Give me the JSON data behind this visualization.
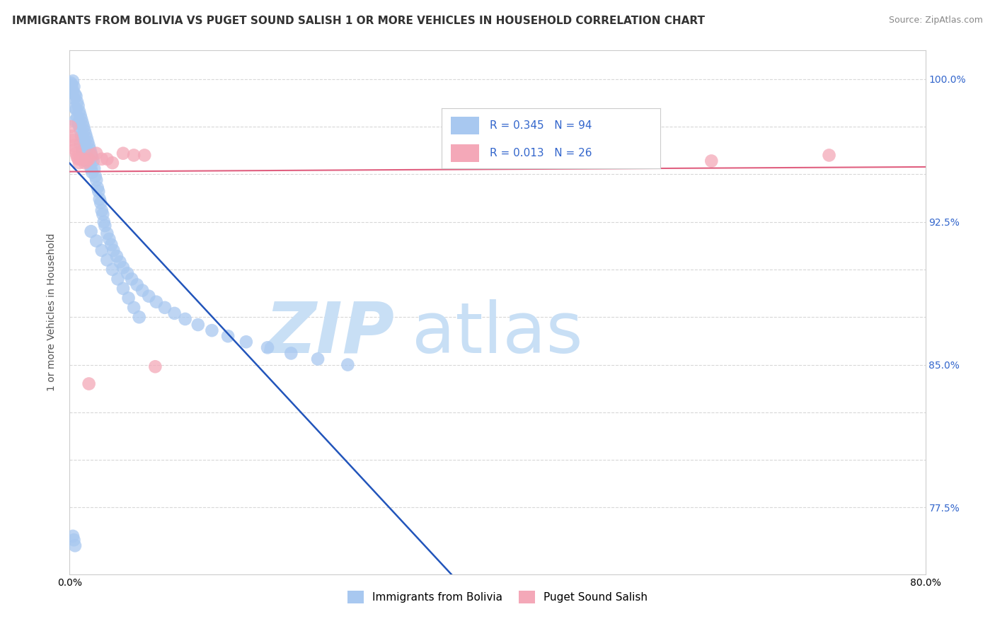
{
  "title": "IMMIGRANTS FROM BOLIVIA VS PUGET SOUND SALISH 1 OR MORE VEHICLES IN HOUSEHOLD CORRELATION CHART",
  "source": "Source: ZipAtlas.com",
  "ylabel": "1 or more Vehicles in Household",
  "legend_label1": "Immigrants from Bolivia",
  "legend_label2": "Puget Sound Salish",
  "R1": 0.345,
  "N1": 94,
  "R2": 0.013,
  "N2": 26,
  "color1": "#a8c8f0",
  "color2": "#f4a8b8",
  "line1_color": "#2255bb",
  "line2_color": "#e06080",
  "watermark_zip": "ZIP",
  "watermark_atlas": "atlas",
  "watermark_color_zip": "#c8dff5",
  "watermark_color_atlas": "#c8dff5",
  "xlim": [
    0.0,
    0.8
  ],
  "ylim": [
    0.74,
    1.015
  ],
  "xticks": [
    0.0,
    0.2,
    0.4,
    0.6,
    0.8
  ],
  "grid_color": "#d8d8d8",
  "background_color": "#ffffff",
  "right_ytick_positions": [
    0.775,
    0.8,
    0.825,
    0.85,
    0.875,
    0.9,
    0.925,
    0.95,
    0.975,
    1.0
  ],
  "right_ytick_labels": [
    "",
    "",
    "",
    "85.0%",
    "",
    "",
    "92.5%",
    "",
    "",
    "100.0%"
  ],
  "extra_right_labels": {
    "0.775": "77.5%"
  },
  "blue_scatter_x": [
    0.001,
    0.002,
    0.002,
    0.003,
    0.003,
    0.004,
    0.004,
    0.005,
    0.005,
    0.005,
    0.006,
    0.006,
    0.007,
    0.007,
    0.008,
    0.008,
    0.009,
    0.009,
    0.01,
    0.01,
    0.01,
    0.011,
    0.011,
    0.012,
    0.012,
    0.012,
    0.013,
    0.013,
    0.014,
    0.014,
    0.015,
    0.015,
    0.015,
    0.016,
    0.016,
    0.017,
    0.017,
    0.018,
    0.018,
    0.019,
    0.019,
    0.02,
    0.02,
    0.021,
    0.021,
    0.022,
    0.023,
    0.024,
    0.025,
    0.026,
    0.027,
    0.028,
    0.029,
    0.03,
    0.031,
    0.032,
    0.033,
    0.035,
    0.037,
    0.039,
    0.041,
    0.044,
    0.047,
    0.05,
    0.054,
    0.058,
    0.063,
    0.068,
    0.074,
    0.081,
    0.089,
    0.098,
    0.108,
    0.12,
    0.133,
    0.148,
    0.165,
    0.185,
    0.207,
    0.232,
    0.26,
    0.02,
    0.025,
    0.03,
    0.035,
    0.04,
    0.045,
    0.05,
    0.055,
    0.06,
    0.065,
    0.003,
    0.004,
    0.005
  ],
  "blue_scatter_y": [
    0.998,
    0.997,
    0.993,
    0.999,
    0.994,
    0.996,
    0.99,
    0.992,
    0.985,
    0.978,
    0.991,
    0.984,
    0.988,
    0.98,
    0.986,
    0.977,
    0.983,
    0.975,
    0.981,
    0.973,
    0.966,
    0.979,
    0.97,
    0.977,
    0.969,
    0.962,
    0.975,
    0.967,
    0.973,
    0.965,
    0.971,
    0.963,
    0.957,
    0.969,
    0.961,
    0.967,
    0.959,
    0.965,
    0.957,
    0.963,
    0.955,
    0.961,
    0.953,
    0.959,
    0.951,
    0.957,
    0.953,
    0.949,
    0.947,
    0.943,
    0.941,
    0.937,
    0.935,
    0.931,
    0.929,
    0.925,
    0.923,
    0.919,
    0.916,
    0.913,
    0.91,
    0.907,
    0.904,
    0.901,
    0.898,
    0.895,
    0.892,
    0.889,
    0.886,
    0.883,
    0.88,
    0.877,
    0.874,
    0.871,
    0.868,
    0.865,
    0.862,
    0.859,
    0.856,
    0.853,
    0.85,
    0.92,
    0.915,
    0.91,
    0.905,
    0.9,
    0.895,
    0.89,
    0.885,
    0.88,
    0.875,
    0.76,
    0.758,
    0.755
  ],
  "pink_scatter_x": [
    0.001,
    0.002,
    0.003,
    0.004,
    0.005,
    0.006,
    0.007,
    0.008,
    0.009,
    0.01,
    0.012,
    0.014,
    0.016,
    0.018,
    0.02,
    0.025,
    0.03,
    0.035,
    0.04,
    0.05,
    0.06,
    0.08,
    0.07,
    0.018,
    0.6,
    0.71
  ],
  "pink_scatter_y": [
    0.975,
    0.97,
    0.968,
    0.965,
    0.963,
    0.961,
    0.959,
    0.958,
    0.956,
    0.958,
    0.958,
    0.956,
    0.957,
    0.958,
    0.96,
    0.961,
    0.958,
    0.958,
    0.956,
    0.961,
    0.96,
    0.849,
    0.96,
    0.84,
    0.957,
    0.96
  ]
}
